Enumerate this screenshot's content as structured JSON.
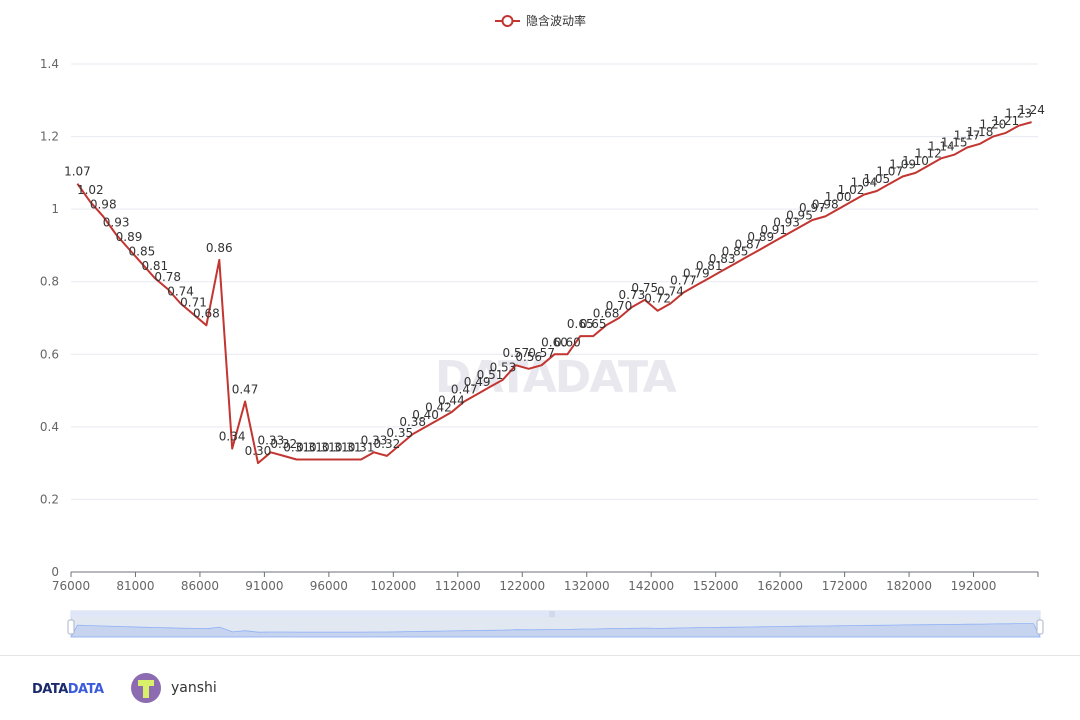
{
  "chart_data": {
    "type": "line",
    "legend": {
      "label": "隐含波动率",
      "position": "top-center",
      "color": "#c23531"
    },
    "x_ticks": [
      "76000",
      "81000",
      "86000",
      "91000",
      "96000",
      "102000",
      "112000",
      "122000",
      "132000",
      "142000",
      "152000",
      "162000",
      "172000",
      "182000",
      "192000"
    ],
    "y_ticks": [
      "0",
      "0.2",
      "0.4",
      "0.6",
      "0.8",
      "1",
      "1.2",
      "1.4"
    ],
    "ylim": [
      0,
      1.4
    ],
    "grid": true,
    "series": [
      {
        "name": "隐含波动率",
        "color": "#c23531",
        "values": [
          1.07,
          1.02,
          0.98,
          0.93,
          0.89,
          0.85,
          0.81,
          0.78,
          0.74,
          0.71,
          0.68,
          0.86,
          0.34,
          0.47,
          0.3,
          0.33,
          0.32,
          0.31,
          0.31,
          0.31,
          0.31,
          0.31,
          0.31,
          0.33,
          0.32,
          0.35,
          0.38,
          0.4,
          0.42,
          0.44,
          0.47,
          0.49,
          0.51,
          0.53,
          0.57,
          0.56,
          0.57,
          0.6,
          0.6,
          0.65,
          0.65,
          0.68,
          0.7,
          0.73,
          0.75,
          0.72,
          0.74,
          0.77,
          0.79,
          0.81,
          0.83,
          0.85,
          0.87,
          0.89,
          0.91,
          0.93,
          0.95,
          0.97,
          0.98,
          1.0,
          1.02,
          1.04,
          1.05,
          1.07,
          1.09,
          1.1,
          1.12,
          1.14,
          1.15,
          1.17,
          1.18,
          1.2,
          1.21,
          1.23,
          1.24
        ],
        "labels": [
          "1.07",
          "1.02",
          "0.98",
          "0.93",
          "0.89",
          "0.85",
          "0.81",
          "0.78",
          "0.74",
          "0.71",
          "0.68",
          "0.86",
          "0.34",
          "0.47",
          "0.30",
          "0.33",
          "0.32",
          "0.31",
          "0.31",
          "0.31",
          "0.31",
          "0.31",
          "0.31",
          "0.33",
          "0.32",
          "0.35",
          "0.38",
          "0.40",
          "0.42",
          "0.44",
          "0.47",
          "0.49",
          "0.51",
          "0.53",
          "0.57",
          "0.56",
          "0.57",
          "0.60",
          "0.60",
          "0.65",
          "0.65",
          "0.68",
          "0.70",
          "0.73",
          "0.75",
          "0.72",
          "0.74",
          "0.77",
          "0.79",
          "0.81",
          "0.83",
          "0.85",
          "0.87",
          "0.89",
          "0.91",
          "0.93",
          "0.95",
          "0.97",
          "0.98",
          "1.00",
          "1.02",
          "1.04",
          "1.05",
          "1.07",
          "1.09",
          "1.10",
          "1.12",
          "1.14",
          "1.15",
          "1.17",
          "1.18",
          "1.20",
          "1.21",
          "1.23",
          "1.24"
        ]
      }
    ]
  },
  "watermark": "DATADATA",
  "footer": {
    "brand_main": "DATA",
    "brand_accent": "DATA",
    "username": "yanshi"
  }
}
